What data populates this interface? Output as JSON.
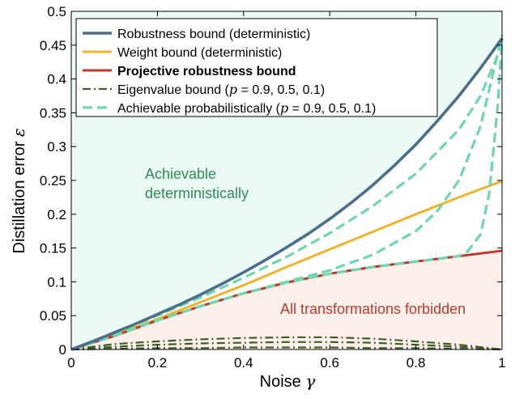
{
  "chart_data": {
    "type": "line",
    "x_label": "Noise",
    "x_symbol": "γ",
    "y_label": "Distillation error",
    "y_symbol": "ε",
    "xlim": [
      0,
      1
    ],
    "ylim": [
      0,
      0.5
    ],
    "x_ticks": [
      "0",
      "0.2",
      "0.4",
      "0.6",
      "0.8",
      "1"
    ],
    "x_tick_values": [
      0,
      0.2,
      0.4,
      0.6,
      0.8,
      1
    ],
    "y_ticks": [
      "0",
      "0.05",
      "0.1",
      "0.15",
      "0.2",
      "0.25",
      "0.3",
      "0.35",
      "0.4",
      "0.45",
      "0.5"
    ],
    "y_tick_values": [
      0,
      0.05,
      0.1,
      0.15,
      0.2,
      0.25,
      0.3,
      0.35,
      0.4,
      0.45,
      0.5
    ],
    "grid": false,
    "legend_position": "top-left",
    "colors": {
      "robustness": "#4a6f8a",
      "weight": "#f0b429",
      "projective": "#c0392b",
      "eigenvalue": "#3e5f2c",
      "achievable": "#6fd6b0",
      "region_achievable_fill": "#ecfaf6",
      "region_forbidden_fill": "#fdf0ea",
      "label_achievable": "#2e8b57",
      "label_forbidden": "#c0392b"
    },
    "annotations": {
      "achievable_line1": "Achievable",
      "achievable_line2": "deterministically",
      "forbidden": "All transformations forbidden"
    },
    "legend": [
      {
        "key": "robustness",
        "text": "Robustness bound (deterministic)",
        "bold": false
      },
      {
        "key": "weight",
        "text": "Weight bound (deterministic)",
        "bold": false
      },
      {
        "key": "projective",
        "text": "Projective robustness bound",
        "bold": true
      },
      {
        "key": "eigenvalue",
        "text_pre": "Eigenvalue bound (",
        "text_p": "p",
        "text_post": " = 0.9, 0.5, 0.1)",
        "bold": false
      },
      {
        "key": "achievable",
        "text_pre": "Achievable probabilistically (",
        "text_p": "p",
        "text_post": " = 0.9, 0.5, 0.1)",
        "bold": false
      }
    ],
    "series": [
      {
        "key": "robustness",
        "name": "Robustness bound (deterministic)",
        "x": [
          0,
          0.05,
          0.1,
          0.15,
          0.2,
          0.25,
          0.3,
          0.35,
          0.4,
          0.45,
          0.5,
          0.55,
          0.6,
          0.65,
          0.7,
          0.75,
          0.8,
          0.85,
          0.9,
          0.95,
          1
        ],
        "y": [
          0,
          0.012,
          0.025,
          0.038,
          0.052,
          0.066,
          0.081,
          0.097,
          0.114,
          0.132,
          0.151,
          0.171,
          0.193,
          0.217,
          0.243,
          0.272,
          0.303,
          0.338,
          0.375,
          0.416,
          0.46
        ]
      },
      {
        "key": "weight",
        "name": "Weight bound (deterministic)",
        "x": [
          0,
          0.1,
          0.2,
          0.3,
          0.4,
          0.5,
          0.6,
          0.7,
          0.8,
          0.9,
          1
        ],
        "y": [
          0,
          0.021,
          0.045,
          0.07,
          0.095,
          0.122,
          0.148,
          0.174,
          0.2,
          0.225,
          0.249
        ]
      },
      {
        "key": "projective",
        "name": "Projective robustness bound",
        "x": [
          0,
          0.1,
          0.2,
          0.3,
          0.4,
          0.5,
          0.6,
          0.7,
          0.8,
          0.9,
          1
        ],
        "y": [
          0,
          0.02,
          0.043,
          0.064,
          0.083,
          0.099,
          0.112,
          0.122,
          0.13,
          0.138,
          0.146
        ]
      },
      {
        "key": "eigenvalue",
        "name": "Eigenvalue bound (p = 0.9)",
        "x": [
          0,
          0.1,
          0.2,
          0.3,
          0.4,
          0.5,
          0.6,
          0.7,
          0.8,
          0.9,
          1
        ],
        "y": [
          0,
          0.008,
          0.012,
          0.015,
          0.017,
          0.018,
          0.018,
          0.016,
          0.012,
          0.007,
          0
        ]
      },
      {
        "key": "eigenvalue",
        "name": "Eigenvalue bound (p = 0.5)",
        "x": [
          0,
          0.1,
          0.2,
          0.3,
          0.4,
          0.5,
          0.6,
          0.7,
          0.8,
          0.9,
          1
        ],
        "y": [
          0,
          0.004,
          0.007,
          0.009,
          0.01,
          0.011,
          0.011,
          0.01,
          0.007,
          0.004,
          0
        ]
      },
      {
        "key": "eigenvalue",
        "name": "Eigenvalue bound (p = 0.1)",
        "x": [
          0,
          0.1,
          0.2,
          0.3,
          0.4,
          0.5,
          0.6,
          0.7,
          0.8,
          0.9,
          1
        ],
        "y": [
          0,
          0.001,
          0.002,
          0.002,
          0.003,
          0.003,
          0.003,
          0.002,
          0.002,
          0.001,
          0
        ]
      },
      {
        "key": "achievable",
        "name": "Achievable probabilistically (p = 0.9)",
        "x": [
          0,
          0.1,
          0.2,
          0.3,
          0.4,
          0.5,
          0.6,
          0.7,
          0.8,
          0.9,
          0.95,
          1
        ],
        "y": [
          0,
          0.024,
          0.05,
          0.077,
          0.106,
          0.137,
          0.172,
          0.212,
          0.26,
          0.325,
          0.375,
          0.45
        ]
      },
      {
        "key": "achievable",
        "name": "Achievable probabilistically (p = 0.5)",
        "x": [
          0,
          0.1,
          0.2,
          0.3,
          0.4,
          0.5,
          0.6,
          0.7,
          0.8,
          0.85,
          0.9,
          0.95,
          1
        ],
        "y": [
          0,
          0.02,
          0.043,
          0.064,
          0.083,
          0.1,
          0.117,
          0.14,
          0.175,
          0.205,
          0.25,
          0.33,
          0.465
        ]
      },
      {
        "key": "achievable",
        "name": "Achievable probabilistically (p = 0.1)",
        "x": [
          0,
          0.1,
          0.2,
          0.3,
          0.4,
          0.5,
          0.6,
          0.7,
          0.8,
          0.9,
          0.92,
          0.95,
          0.97,
          0.99,
          1
        ],
        "y": [
          0,
          0.02,
          0.043,
          0.064,
          0.083,
          0.099,
          0.112,
          0.122,
          0.13,
          0.138,
          0.145,
          0.17,
          0.23,
          0.36,
          0.46
        ]
      }
    ]
  }
}
